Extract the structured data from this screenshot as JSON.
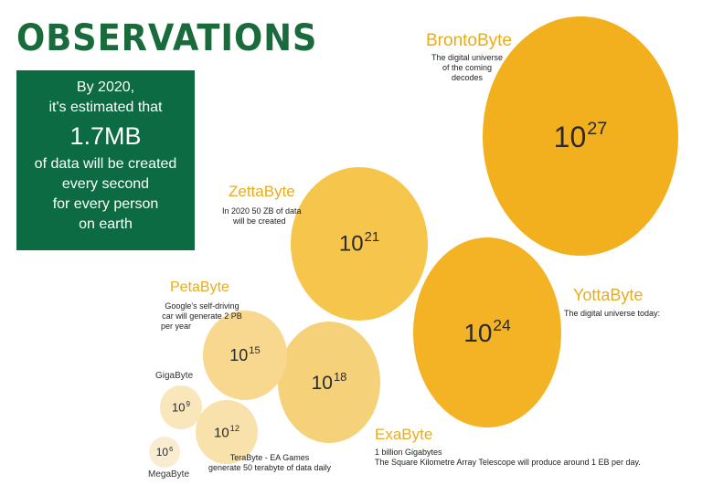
{
  "title": "OBSERVATIONS",
  "info_box": {
    "line1": "By 2020,",
    "line2": "it's estimated that",
    "highlight": "1.7MB",
    "line3": "of data will be created",
    "line4": "every second",
    "line5": "for every person",
    "line6": "on earth"
  },
  "units": [
    {
      "name": "BrontoByte",
      "base": "10",
      "exp": "27",
      "desc_lines": [
        "The digital universe",
        "of the coming",
        "decodes"
      ]
    },
    {
      "name": "ZettaByte",
      "base": "10",
      "exp": "21",
      "desc_lines": [
        "In 2020 50 ZB of data",
        "will be created"
      ]
    },
    {
      "name": "YottaByte",
      "base": "10",
      "exp": "24",
      "desc_lines": [
        "The digital universe today:"
      ]
    },
    {
      "name": "PetaByte",
      "base": "10",
      "exp": "15",
      "desc_lines": [
        "Google's self-driving",
        "car will generate 2 PB",
        "per year"
      ]
    },
    {
      "name": "ExaByte",
      "base": "10",
      "exp": "18",
      "desc_lines": [
        "1 billion Gigabytes",
        "The Square Kilometre Array Telescope will produce around 1 EB per day."
      ]
    },
    {
      "name": "GigaByte",
      "base": "10",
      "exp": "9",
      "desc_lines": []
    },
    {
      "name": "TeraByte",
      "base": "10",
      "exp": "12",
      "desc_lines": [
        "TeraByte - EA Games",
        "generate 50 terabyte of data daily"
      ]
    },
    {
      "name": "MegaByte",
      "base": "10",
      "exp": "6",
      "desc_lines": []
    }
  ],
  "colors": {
    "title": "#1a6b3c",
    "info_box_bg": "#0d6b43",
    "unit_label": "#e8ac1c",
    "bubble_brontobyte": "#f2b01e",
    "bubble_yottabyte": "#f3b325",
    "bubble_zettabyte": "#f6c54c",
    "bubble_exabyte": "#f5d27a",
    "bubble_petabyte": "#f7d88e",
    "bubble_terabyte": "#f8e1ab",
    "bubble_gigabyte": "#f9e6bb",
    "bubble_megabyte": "#faecd0"
  }
}
